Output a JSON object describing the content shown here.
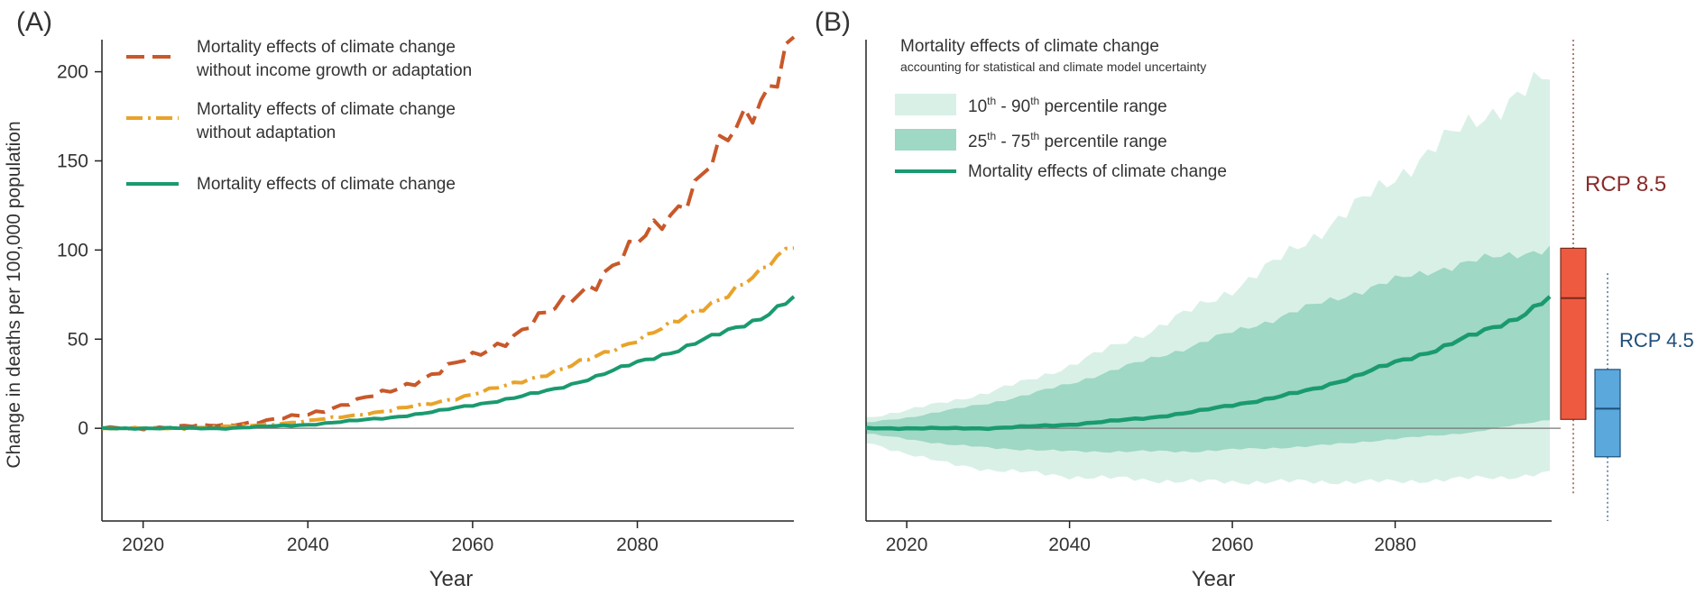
{
  "colors": {
    "no_income": "#C8582A",
    "no_adapt": "#E8A32A",
    "full": "#1A9A70",
    "band_outer": "#D9F0E7",
    "band_inner": "#9FD8C4",
    "rcp85_box": "#EE5A40",
    "rcp85_text": "#8A2A2A",
    "rcp45_box": "#5AA8DC",
    "rcp45_text": "#1F4E79"
  },
  "chart_data": [
    {
      "panel_label": "(A)",
      "type": "line",
      "xlabel": "Year",
      "ylabel": "Change in deaths per 100,000 population",
      "xlim": [
        2015,
        2099
      ],
      "ylim": [
        -52,
        218
      ],
      "x_ticks": [
        2020,
        2040,
        2060,
        2080
      ],
      "y_ticks": [
        0,
        50,
        100,
        150,
        200
      ],
      "legend": {
        "placement": "top-left",
        "entries": [
          {
            "series": "no_income",
            "label_lines": [
              "Mortality effects of climate change",
              "without income growth or adaptation"
            ]
          },
          {
            "series": "no_adapt",
            "label_lines": [
              "Mortality effects of climate change",
              "without adaptation"
            ]
          },
          {
            "series": "full",
            "label_lines": [
              "Mortality effects of climate change"
            ]
          }
        ]
      },
      "series": [
        {
          "key": "no_income",
          "style": "dashed",
          "name": "Mortality effects of climate change without income growth or adaptation",
          "points": [
            [
              2015,
              0
            ],
            [
              2020,
              0
            ],
            [
              2025,
              1
            ],
            [
              2030,
              2
            ],
            [
              2035,
              4
            ],
            [
              2040,
              8
            ],
            [
              2045,
              14
            ],
            [
              2050,
              21
            ],
            [
              2055,
              30
            ],
            [
              2060,
              40
            ],
            [
              2065,
              52
            ],
            [
              2070,
              67
            ],
            [
              2075,
              83
            ],
            [
              2080,
              103
            ],
            [
              2085,
              125
            ],
            [
              2090,
              155
            ],
            [
              2095,
              185
            ],
            [
              2099,
              220
            ]
          ]
        },
        {
          "key": "no_adapt",
          "style": "dash-dot",
          "name": "Mortality effects of climate change without adaptation",
          "points": [
            [
              2015,
              0
            ],
            [
              2020,
              0
            ],
            [
              2025,
              0
            ],
            [
              2030,
              1
            ],
            [
              2035,
              2
            ],
            [
              2040,
              4
            ],
            [
              2045,
              7
            ],
            [
              2050,
              10
            ],
            [
              2055,
              14
            ],
            [
              2060,
              19
            ],
            [
              2065,
              25
            ],
            [
              2070,
              32
            ],
            [
              2075,
              40
            ],
            [
              2080,
              50
            ],
            [
              2085,
              60
            ],
            [
              2090,
              73
            ],
            [
              2095,
              87
            ],
            [
              2099,
              104
            ]
          ]
        },
        {
          "key": "full",
          "style": "solid",
          "name": "Mortality effects of climate change",
          "points": [
            [
              2015,
              0
            ],
            [
              2020,
              0
            ],
            [
              2025,
              0
            ],
            [
              2030,
              0
            ],
            [
              2035,
              1
            ],
            [
              2040,
              2
            ],
            [
              2045,
              4
            ],
            [
              2050,
              6
            ],
            [
              2055,
              9
            ],
            [
              2060,
              13
            ],
            [
              2065,
              17
            ],
            [
              2070,
              22
            ],
            [
              2075,
              29
            ],
            [
              2080,
              37
            ],
            [
              2085,
              44
            ],
            [
              2090,
              53
            ],
            [
              2095,
              62
            ],
            [
              2099,
              73
            ]
          ]
        }
      ]
    },
    {
      "panel_label": "(B)",
      "type": "area",
      "xlabel": "Year",
      "xlim": [
        2015,
        2099
      ],
      "ylim": [
        -52,
        218
      ],
      "x_ticks": [
        2020,
        2040,
        2060,
        2080
      ],
      "legend": {
        "placement": "top-left",
        "title": "Mortality effects of climate change",
        "subtitle": "accounting for statistical and climate model uncertainty",
        "entries": [
          {
            "key": "p10_90",
            "sup": [
              "th",
              "th"
            ],
            "label_parts": [
              "10",
              " - 90",
              " percentile range"
            ]
          },
          {
            "key": "p25_75",
            "sup": [
              "th",
              "th"
            ],
            "label_parts": [
              "25",
              " - 75",
              " percentile range"
            ]
          },
          {
            "key": "median",
            "label": "Mortality effects of climate change"
          }
        ]
      },
      "x": [
        2015,
        2020,
        2025,
        2030,
        2035,
        2040,
        2045,
        2050,
        2055,
        2060,
        2065,
        2070,
        2075,
        2080,
        2085,
        2090,
        2095,
        2099
      ],
      "bands": {
        "p10": [
          -8,
          -14,
          -20,
          -23,
          -25,
          -27,
          -28,
          -29,
          -30,
          -30,
          -30,
          -30,
          -30,
          -30,
          -29,
          -28,
          -27,
          -25
        ],
        "p90": [
          6,
          10,
          15,
          20,
          27,
          35,
          45,
          55,
          66,
          78,
          92,
          108,
          124,
          141,
          158,
          173,
          187,
          196
        ],
        "p25": [
          -3,
          -6,
          -9,
          -11,
          -12,
          -13,
          -13,
          -13,
          -13,
          -12,
          -11,
          -10,
          -8,
          -6,
          -4,
          -2,
          2,
          5
        ],
        "p75": [
          3,
          6,
          10,
          14,
          19,
          25,
          32,
          39,
          46,
          54,
          61,
          69,
          76,
          83,
          89,
          94,
          98,
          101
        ]
      },
      "median": [
        0,
        0,
        0,
        0,
        1,
        2,
        4,
        6,
        9,
        13,
        17,
        22,
        29,
        37,
        44,
        53,
        62,
        73
      ],
      "boxplots": [
        {
          "label": "RCP 8.5",
          "whisker_low": -37,
          "q1": 5,
          "median": 73,
          "q3": 101,
          "whisker_high": 218
        },
        {
          "label": "RCP 4.5",
          "whisker_low": -52,
          "q1": -16,
          "median": 11,
          "q3": 33,
          "whisker_high": 87
        }
      ]
    }
  ]
}
